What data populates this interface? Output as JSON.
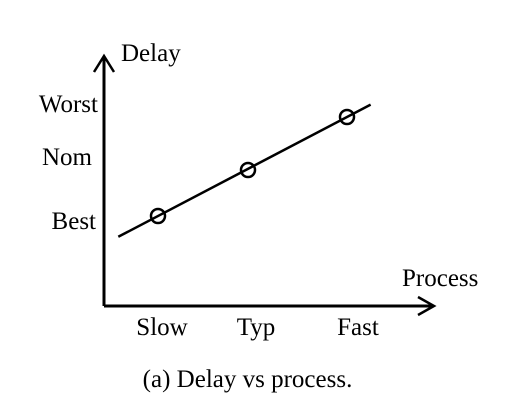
{
  "chart_data": {
    "type": "line",
    "xlabel": "Process",
    "ylabel": "Delay",
    "categories": [
      "Slow",
      "Typ",
      "Fast"
    ],
    "y_categories": [
      "Best",
      "Nom",
      "Worst"
    ],
    "series": [
      {
        "values": [
          "Best",
          "Nom",
          "Worst"
        ]
      }
    ],
    "markers": "hollow-circle",
    "grid": false,
    "legend": "none",
    "caption": "(a) Delay vs process."
  },
  "colors": {
    "line": "#000000",
    "background": "#ffffff"
  }
}
